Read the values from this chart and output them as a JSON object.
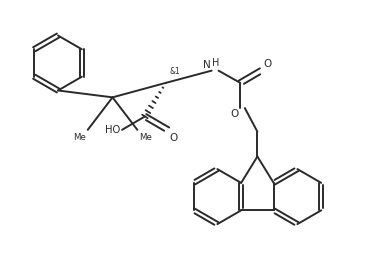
{
  "bg_color": "#ffffff",
  "line_color": "#2a2a2a",
  "line_width": 1.4,
  "fig_width": 3.89,
  "fig_height": 2.68,
  "dpi": 100,
  "xlim": [
    0,
    10
  ],
  "ylim": [
    0,
    6.88
  ]
}
